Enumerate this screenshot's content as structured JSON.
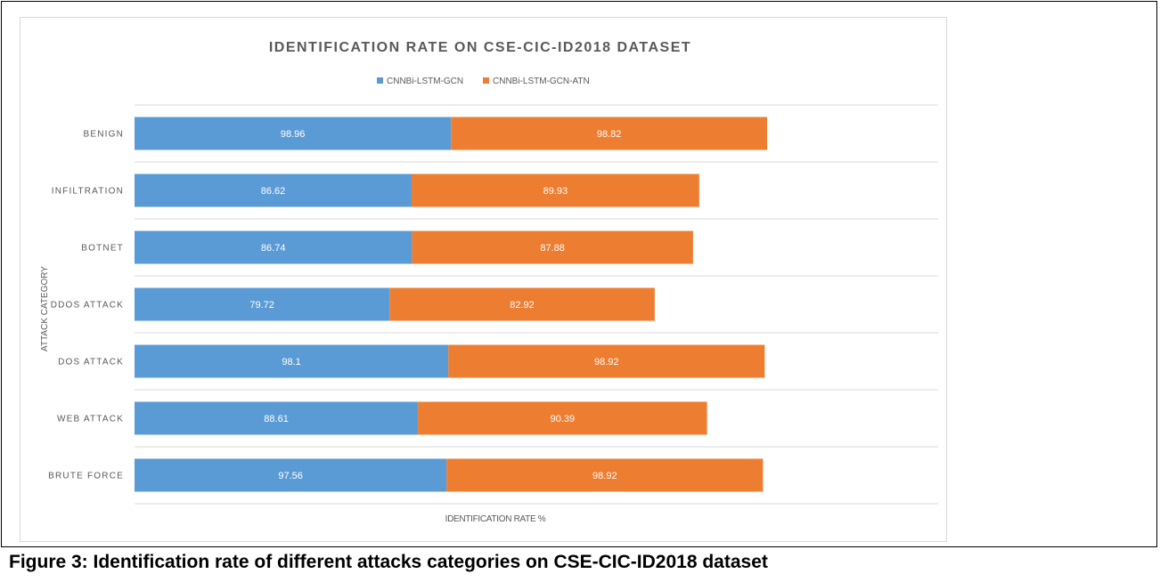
{
  "caption": "Figure 3: Identification rate of different attacks categories on CSE-CIC-ID2018 dataset",
  "chart_data": {
    "type": "bar",
    "orientation": "horizontal",
    "stacked": true,
    "title": "IDENTIFICATION RATE ON  CSE-CIC-ID2018 DATASET",
    "xlabel": "IDENTIFICATION RATE %",
    "ylabel": "ATTACK CATEGORY",
    "legend_position": "top",
    "grid": "horizontal",
    "categories": [
      "BENIGN",
      "INFILTRATION",
      "BOTNET",
      "DDOS ATTACK",
      "DOS ATTACK",
      "WEB ATTACK",
      "BRUTE FORCE"
    ],
    "series": [
      {
        "name": "CNNBi-LSTM-GCN",
        "color": "#5b9bd5",
        "values": [
          98.96,
          86.62,
          86.74,
          79.72,
          98.1,
          88.61,
          97.56
        ]
      },
      {
        "name": "CNNBi-LSTM-GCN-ATN",
        "color": "#ed7d31",
        "values": [
          98.82,
          89.93,
          87.88,
          82.92,
          98.92,
          90.39,
          98.92
        ]
      }
    ]
  }
}
